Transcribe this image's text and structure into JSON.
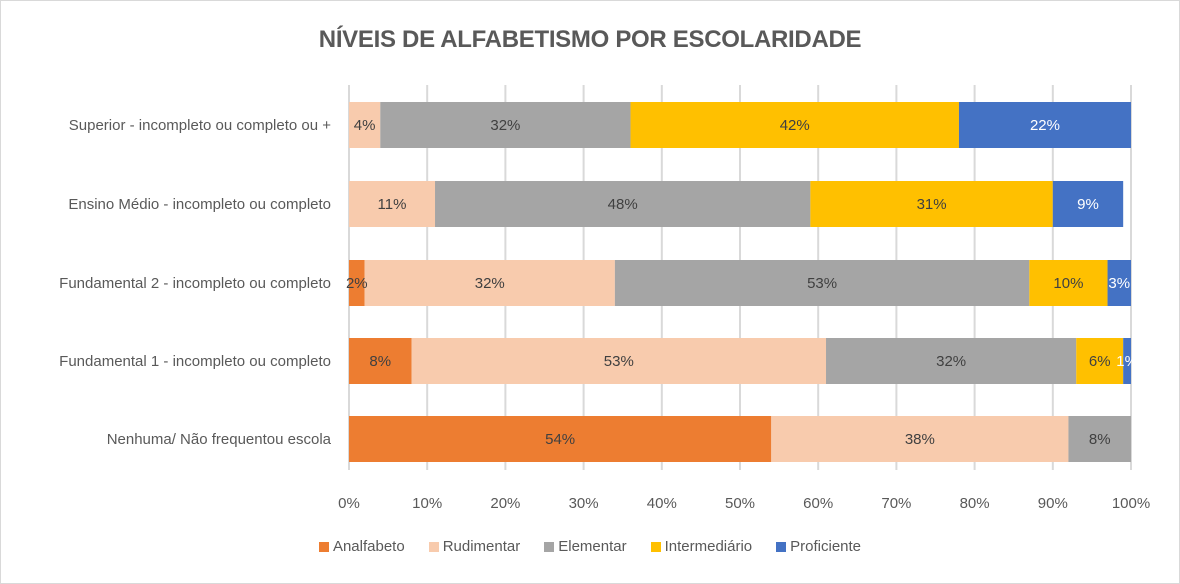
{
  "chart_data": {
    "type": "bar",
    "orientation": "horizontal",
    "stacked": "percent",
    "title": "NÍVEIS DE ALFABETISMO POR ESCOLARIDADE",
    "xlabel": "",
    "ylabel": "",
    "xlim": [
      0,
      100
    ],
    "x_ticks": [
      "0%",
      "10%",
      "20%",
      "30%",
      "40%",
      "50%",
      "60%",
      "70%",
      "80%",
      "90%",
      "100%"
    ],
    "grid": "vertical",
    "legend_position": "bottom",
    "categories": [
      "Superior - incompleto ou completo ou +",
      "Ensino Médio - incompleto ou completo",
      "Fundamental 2 - incompleto ou completo",
      "Fundamental 1 - incompleto ou completo",
      "Nenhuma/ Não frequentou escola"
    ],
    "series": [
      {
        "name": "Analfabeto",
        "color": "#ED7D31",
        "label_color": "#404040",
        "values": [
          0,
          0,
          2,
          8,
          54
        ]
      },
      {
        "name": "Rudimentar",
        "color": "#F8CBAD",
        "label_color": "#404040",
        "values": [
          4,
          11,
          32,
          53,
          38
        ]
      },
      {
        "name": "Elementar",
        "color": "#A5A5A5",
        "label_color": "#404040",
        "values": [
          32,
          48,
          53,
          32,
          8
        ]
      },
      {
        "name": "Intermediário",
        "color": "#FFC000",
        "label_color": "#404040",
        "values": [
          42,
          31,
          10,
          6,
          0
        ]
      },
      {
        "name": "Proficiente",
        "color": "#4472C4",
        "label_color": "#FFFFFF",
        "values": [
          22,
          9,
          3,
          1,
          0
        ]
      }
    ],
    "data_labels": [
      [
        "",
        "4%",
        "32%",
        "42%",
        "22%"
      ],
      [
        "",
        "11%",
        "48%",
        "31%",
        "9%"
      ],
      [
        "2%",
        "32%",
        "53%",
        "10%",
        "3%"
      ],
      [
        "8%",
        "53%",
        "32%",
        "6%",
        "1%"
      ],
      [
        "54%",
        "38%",
        "8%",
        "",
        ""
      ]
    ]
  }
}
